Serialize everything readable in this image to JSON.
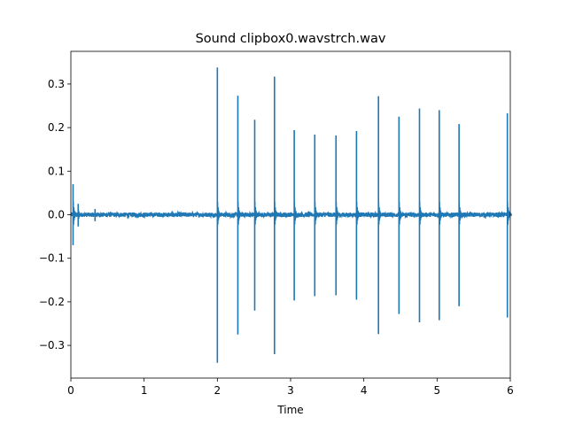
{
  "chart_data": {
    "type": "line",
    "title": "Sound clipbox0.wavstrch.wav",
    "xlabel": "Time",
    "ylabel": "",
    "xlim": [
      0,
      6.0
    ],
    "ylim": [
      -0.375,
      0.375
    ],
    "xticks": [
      0,
      1,
      2,
      3,
      4,
      5,
      6
    ],
    "yticks": [
      -0.3,
      -0.2,
      -0.1,
      0.0,
      0.1,
      0.2,
      0.3
    ],
    "xtick_labels": [
      "0",
      "1",
      "2",
      "3",
      "4",
      "5",
      "6"
    ],
    "ytick_labels": [
      "−0.3",
      "−0.2",
      "−0.1",
      "0.0",
      "0.1",
      "0.2",
      "0.3"
    ],
    "grid": false,
    "legend": "none",
    "line_color": "#1f77b4",
    "baseline_noise_amplitude": 0.005,
    "series": [
      {
        "spikes": [
          {
            "x": 0.03,
            "pos": 0.07,
            "neg": -0.07
          },
          {
            "x": 0.1,
            "pos": 0.025,
            "neg": -0.027
          },
          {
            "x": 0.33,
            "pos": 0.013,
            "neg": -0.015
          },
          {
            "x": 2.0,
            "pos": 0.338,
            "neg": -0.34
          },
          {
            "x": 2.28,
            "pos": 0.273,
            "neg": -0.275
          },
          {
            "x": 2.51,
            "pos": 0.218,
            "neg": -0.22
          },
          {
            "x": 2.78,
            "pos": 0.317,
            "neg": -0.32
          },
          {
            "x": 3.05,
            "pos": 0.194,
            "neg": -0.197
          },
          {
            "x": 3.33,
            "pos": 0.184,
            "neg": -0.187
          },
          {
            "x": 3.62,
            "pos": 0.182,
            "neg": -0.185
          },
          {
            "x": 3.9,
            "pos": 0.192,
            "neg": -0.195
          },
          {
            "x": 4.2,
            "pos": 0.272,
            "neg": -0.274
          },
          {
            "x": 4.48,
            "pos": 0.225,
            "neg": -0.228
          },
          {
            "x": 4.76,
            "pos": 0.244,
            "neg": -0.247
          },
          {
            "x": 5.03,
            "pos": 0.24,
            "neg": -0.242
          },
          {
            "x": 5.3,
            "pos": 0.208,
            "neg": -0.21
          },
          {
            "x": 5.96,
            "pos": 0.233,
            "neg": -0.236
          }
        ]
      }
    ]
  }
}
